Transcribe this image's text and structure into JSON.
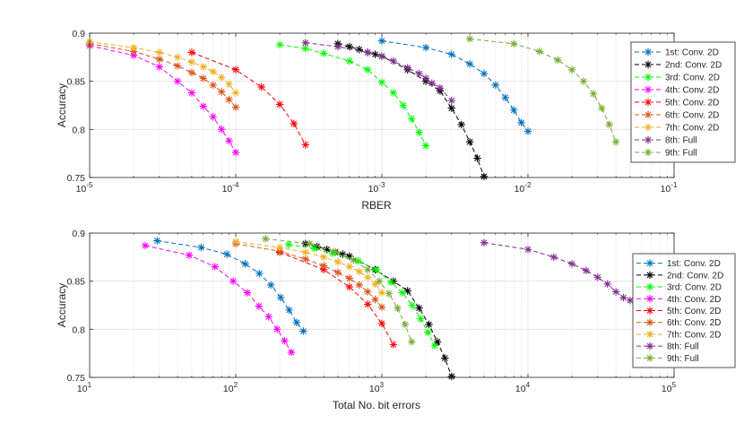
{
  "chart_data": [
    {
      "type": "line",
      "xscale": "log",
      "xlabel": "RBER",
      "ylabel": "Accuracy",
      "xlim": [
        1e-05,
        0.1
      ],
      "ylim": [
        0.75,
        0.9
      ],
      "xticks": [
        {
          "value": 1e-05,
          "base": "10",
          "exp": "-5"
        },
        {
          "value": 0.0001,
          "base": "10",
          "exp": "-4"
        },
        {
          "value": 0.001,
          "base": "10",
          "exp": "-3"
        },
        {
          "value": 0.01,
          "base": "10",
          "exp": "-2"
        },
        {
          "value": 0.1,
          "base": "10",
          "exp": "-1"
        }
      ],
      "yticks": [
        "0.75",
        "0.8",
        "0.85",
        "0.9"
      ],
      "grid": true,
      "legend_position": "right",
      "series": [
        {
          "name": "1st: Conv. 2D",
          "color": "#0072BD",
          "x": [
            0.001,
            0.002,
            0.003,
            0.004,
            0.005,
            0.006,
            0.007,
            0.008,
            0.009,
            0.01
          ],
          "y": [
            0.892,
            0.885,
            0.878,
            0.868,
            0.858,
            0.846,
            0.833,
            0.82,
            0.807,
            0.798
          ]
        },
        {
          "name": "2nd: Conv. 2D",
          "color": "#000000",
          "x": [
            0.0005,
            0.0006,
            0.0007,
            0.0008,
            0.0009,
            0.001,
            0.0015,
            0.002,
            0.0025,
            0.003,
            0.0035,
            0.004,
            0.0045,
            0.005
          ],
          "y": [
            0.889,
            0.886,
            0.883,
            0.88,
            0.878,
            0.876,
            0.862,
            0.85,
            0.84,
            0.822,
            0.805,
            0.787,
            0.77,
            0.751
          ]
        },
        {
          "name": "3rd: Conv. 2D",
          "color": "#00FF00",
          "x": [
            0.0002,
            0.0003,
            0.0004,
            0.0006,
            0.0008,
            0.001,
            0.0012,
            0.0014,
            0.0016,
            0.0018,
            0.002
          ],
          "y": [
            0.888,
            0.884,
            0.879,
            0.871,
            0.862,
            0.849,
            0.838,
            0.825,
            0.811,
            0.797,
            0.783
          ]
        },
        {
          "name": "4th: Conv. 2D",
          "color": "#FF00FF",
          "x": [
            1e-05,
            2e-05,
            3e-05,
            4e-05,
            5e-05,
            6e-05,
            7e-05,
            8e-05,
            9e-05,
            0.0001
          ],
          "y": [
            0.887,
            0.877,
            0.865,
            0.85,
            0.838,
            0.824,
            0.813,
            0.8,
            0.788,
            0.776
          ]
        },
        {
          "name": "5th: Conv. 2D",
          "color": "#FF0000",
          "x": [
            5e-05,
            0.0001,
            0.00015,
            0.0002,
            0.00025,
            0.0003
          ],
          "y": [
            0.88,
            0.862,
            0.844,
            0.826,
            0.806,
            0.784
          ]
        },
        {
          "name": "6th: Conv. 2D",
          "color": "#D95319",
          "x": [
            1e-05,
            2e-05,
            3e-05,
            4e-05,
            5e-05,
            6e-05,
            7e-05,
            8e-05,
            9e-05,
            0.0001
          ],
          "y": [
            0.889,
            0.881,
            0.873,
            0.866,
            0.859,
            0.853,
            0.846,
            0.839,
            0.831,
            0.823
          ]
        },
        {
          "name": "7th: Conv. 2D",
          "color": "#EDB120",
          "x": [
            1e-05,
            2e-05,
            3e-05,
            4e-05,
            5e-05,
            6e-05,
            7e-05,
            8e-05,
            9e-05,
            0.0001
          ],
          "y": [
            0.891,
            0.885,
            0.88,
            0.875,
            0.87,
            0.865,
            0.86,
            0.854,
            0.847,
            0.838
          ]
        },
        {
          "name": "8th: Full",
          "color": "#7E2F8E",
          "x": [
            0.0003,
            0.0005,
            0.0008,
            0.001,
            0.0012,
            0.0015,
            0.0018,
            0.002,
            0.0022,
            0.0025,
            0.003
          ],
          "y": [
            0.89,
            0.886,
            0.88,
            0.876,
            0.871,
            0.864,
            0.858,
            0.853,
            0.848,
            0.843,
            0.83
          ]
        },
        {
          "name": "9th: Full",
          "color": "#77AC30",
          "x": [
            0.004,
            0.008,
            0.012,
            0.016,
            0.02,
            0.024,
            0.028,
            0.032,
            0.036,
            0.04
          ],
          "y": [
            0.894,
            0.889,
            0.881,
            0.872,
            0.862,
            0.85,
            0.837,
            0.822,
            0.805,
            0.787
          ]
        }
      ]
    },
    {
      "type": "line",
      "xscale": "log",
      "xlabel": "Total No. bit errors",
      "ylabel": "Accuracy",
      "xlim": [
        10,
        100000
      ],
      "ylim": [
        0.75,
        0.9
      ],
      "xticks": [
        {
          "value": 10,
          "base": "10",
          "exp": "1"
        },
        {
          "value": 100,
          "base": "10",
          "exp": "2"
        },
        {
          "value": 1000,
          "base": "10",
          "exp": "3"
        },
        {
          "value": 10000,
          "base": "10",
          "exp": "4"
        },
        {
          "value": 100000,
          "base": "10",
          "exp": "5"
        }
      ],
      "yticks": [
        "0.75",
        "0.8",
        "0.85",
        "0.9"
      ],
      "grid": true,
      "legend_position": "right",
      "series": [
        {
          "name": "1st: Conv. 2D",
          "color": "#0072BD",
          "x": [
            29,
            58,
            87,
            116,
            145,
            174,
            203,
            232,
            261,
            290
          ],
          "y": [
            0.892,
            0.885,
            0.878,
            0.868,
            0.858,
            0.846,
            0.833,
            0.82,
            0.807,
            0.798
          ]
        },
        {
          "name": "2nd: Conv. 2D",
          "color": "#000000",
          "x": [
            300,
            360,
            420,
            480,
            540,
            600,
            900,
            1200,
            1500,
            1800,
            2100,
            2400,
            2700,
            3000
          ],
          "y": [
            0.889,
            0.886,
            0.883,
            0.88,
            0.878,
            0.876,
            0.862,
            0.85,
            0.84,
            0.822,
            0.805,
            0.787,
            0.77,
            0.751
          ]
        },
        {
          "name": "3rd: Conv. 2D",
          "color": "#00FF00",
          "x": [
            230,
            345,
            460,
            690,
            920,
            1150,
            1380,
            1610,
            1840,
            2070,
            2300
          ],
          "y": [
            0.888,
            0.884,
            0.879,
            0.871,
            0.862,
            0.849,
            0.838,
            0.825,
            0.811,
            0.797,
            0.783
          ]
        },
        {
          "name": "4th: Conv. 2D",
          "color": "#FF00FF",
          "x": [
            24,
            48,
            72,
            96,
            120,
            144,
            168,
            192,
            216,
            240
          ],
          "y": [
            0.887,
            0.877,
            0.865,
            0.85,
            0.838,
            0.824,
            0.813,
            0.8,
            0.788,
            0.776
          ]
        },
        {
          "name": "5th: Conv. 2D",
          "color": "#FF0000",
          "x": [
            200,
            400,
            600,
            800,
            1000,
            1200
          ],
          "y": [
            0.88,
            0.862,
            0.844,
            0.826,
            0.806,
            0.784
          ]
        },
        {
          "name": "6th: Conv. 2D",
          "color": "#D95319",
          "x": [
            100,
            200,
            300,
            400,
            500,
            600,
            700,
            800,
            900,
            1000
          ],
          "y": [
            0.889,
            0.881,
            0.873,
            0.866,
            0.859,
            0.853,
            0.846,
            0.839,
            0.831,
            0.823
          ]
        },
        {
          "name": "7th: Conv. 2D",
          "color": "#EDB120",
          "x": [
            100,
            200,
            300,
            400,
            500,
            600,
            700,
            800,
            900,
            1000
          ],
          "y": [
            0.891,
            0.885,
            0.88,
            0.875,
            0.87,
            0.865,
            0.86,
            0.854,
            0.847,
            0.838
          ]
        },
        {
          "name": "8th: Full",
          "color": "#7E2F8E",
          "x": [
            5000,
            10000,
            15000,
            20000,
            25000,
            30000,
            35000,
            40000,
            45000,
            50000
          ],
          "y": [
            0.89,
            0.883,
            0.875,
            0.868,
            0.861,
            0.854,
            0.847,
            0.839,
            0.833,
            0.83
          ]
        },
        {
          "name": "9th: Full",
          "color": "#77AC30",
          "x": [
            160,
            320,
            480,
            640,
            800,
            960,
            1120,
            1280,
            1440,
            1600
          ],
          "y": [
            0.894,
            0.889,
            0.881,
            0.872,
            0.862,
            0.85,
            0.837,
            0.822,
            0.805,
            0.787
          ]
        }
      ]
    }
  ]
}
